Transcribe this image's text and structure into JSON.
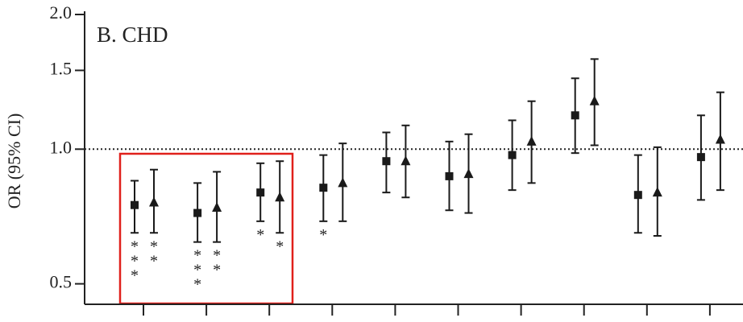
{
  "chart_data": {
    "type": "forest",
    "title": "B. CHD",
    "y_label": "OR (95% CI)",
    "log_scale": true,
    "ylim": [
      0.45,
      2.0
    ],
    "yticks": [
      {
        "value": 0.5,
        "label": "0.5"
      },
      {
        "value": 1.0,
        "label": "1.0"
      },
      {
        "value": 1.5,
        "label": "1.5"
      },
      {
        "value": 2.0,
        "label": "2.0"
      }
    ],
    "reference_line": 1,
    "categories": [
      null,
      null,
      null,
      null,
      null,
      null,
      null,
      null,
      null,
      null
    ],
    "series": [
      {
        "marker": "square",
        "color": "#1a1a1a",
        "values": [
          0.75,
          0.72,
          0.8,
          0.82,
          0.94,
          0.87,
          0.97,
          1.19,
          0.79,
          0.96
        ],
        "lower": [
          0.65,
          0.62,
          0.69,
          0.69,
          0.8,
          0.73,
          0.81,
          0.98,
          0.65,
          0.77
        ],
        "upper": [
          0.85,
          0.84,
          0.93,
          0.97,
          1.09,
          1.04,
          1.16,
          1.44,
          0.97,
          1.19
        ]
      },
      {
        "marker": "triangle",
        "color": "#1a1a1a",
        "values": [
          0.76,
          0.74,
          0.78,
          0.84,
          0.94,
          0.88,
          1.04,
          1.28,
          0.8,
          1.05
        ],
        "lower": [
          0.65,
          0.62,
          0.65,
          0.69,
          0.78,
          0.72,
          0.84,
          1.02,
          0.64,
          0.81
        ],
        "upper": [
          0.9,
          0.89,
          0.94,
          1.03,
          1.13,
          1.08,
          1.28,
          1.59,
          1.01,
          1.34
        ]
      }
    ],
    "annotations": [
      {
        "text": "***",
        "series": 0,
        "index": 0
      },
      {
        "text": "**",
        "series": 1,
        "index": 0
      },
      {
        "text": "***",
        "series": 0,
        "index": 1
      },
      {
        "text": "**",
        "series": 1,
        "index": 1
      },
      {
        "text": "*",
        "series": 0,
        "index": 2
      },
      {
        "text": "*",
        "series": 1,
        "index": 2
      },
      {
        "text": "*",
        "series": 0,
        "index": 3
      }
    ]
  }
}
